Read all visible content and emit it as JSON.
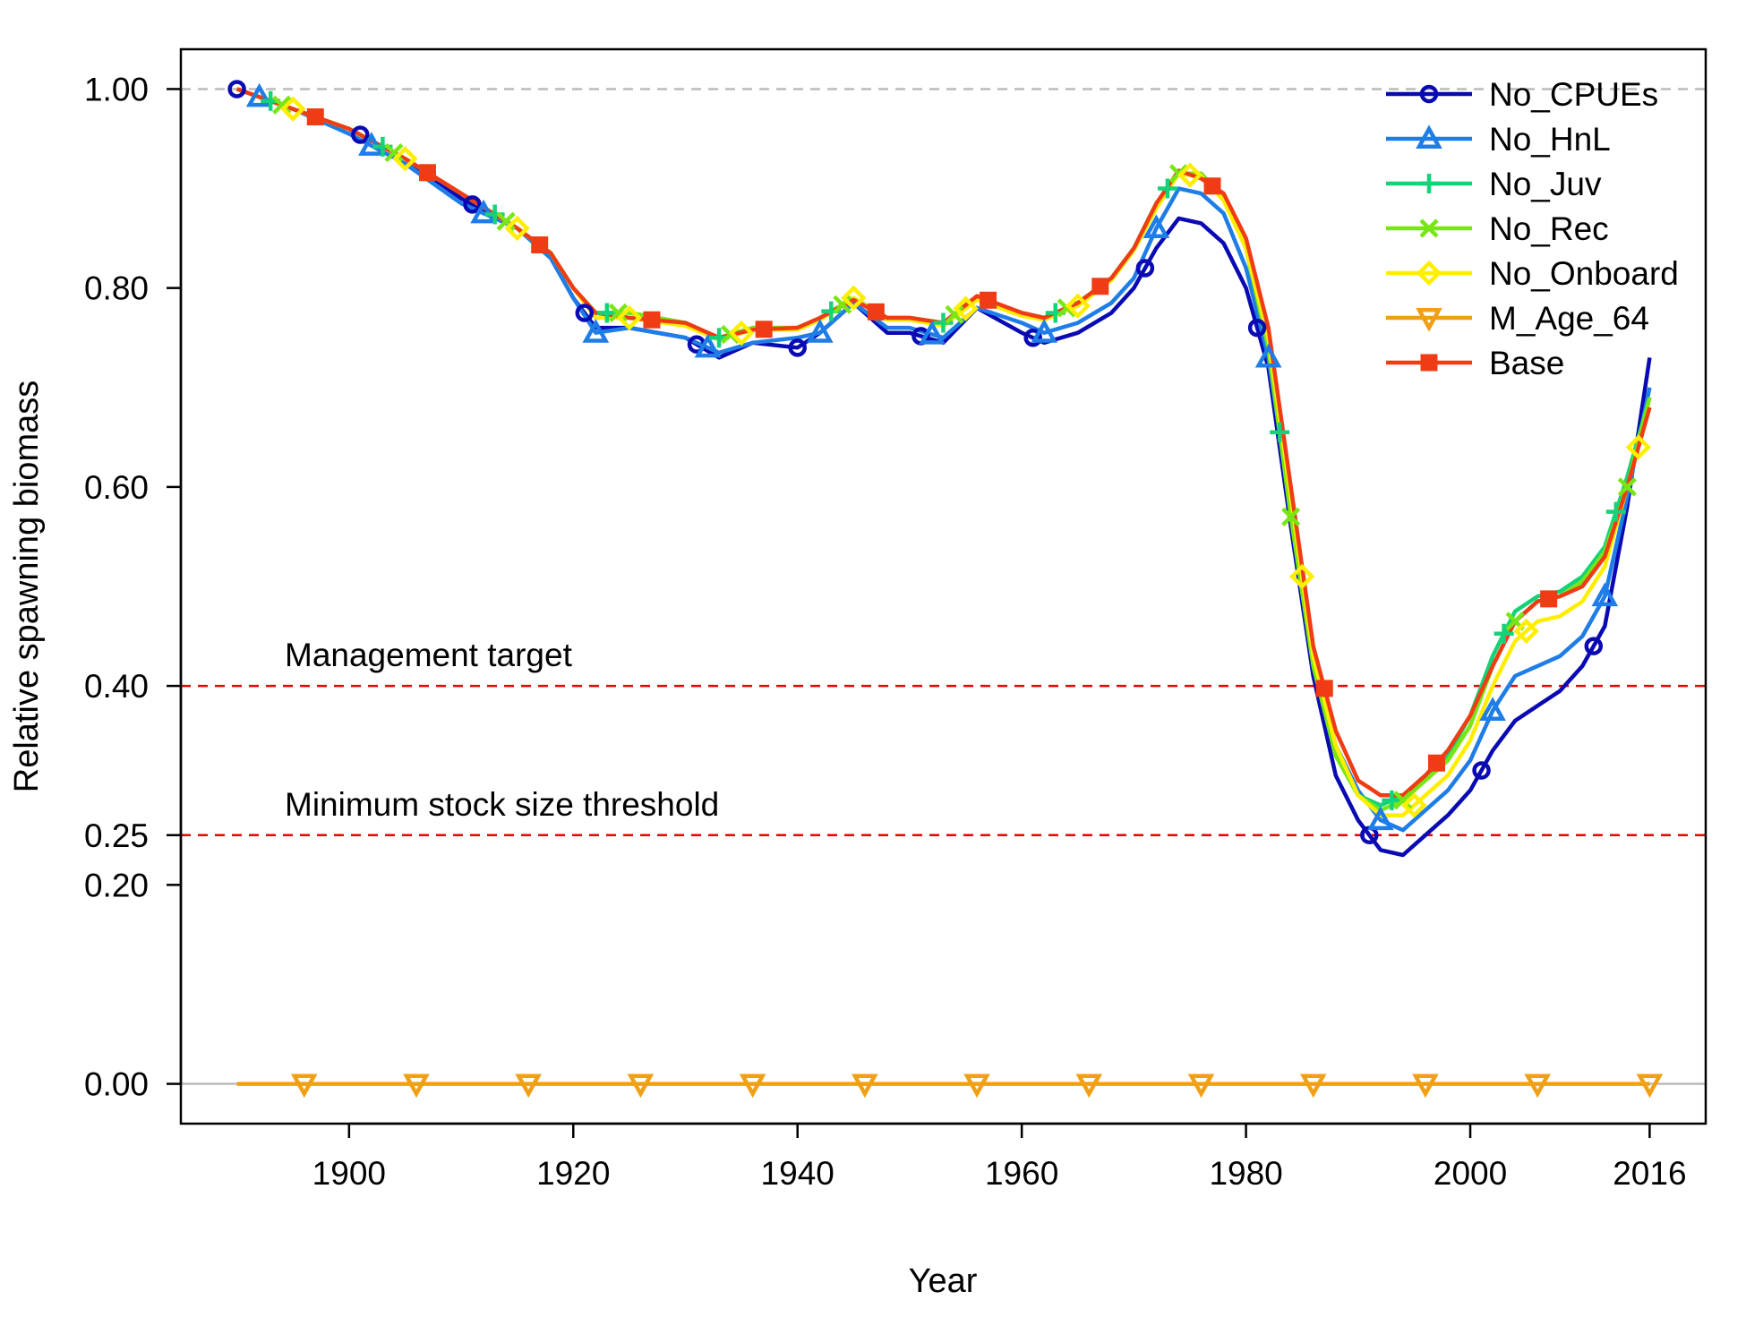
{
  "chart_data": {
    "type": "line",
    "title": "",
    "xlabel": "Year",
    "ylabel": "Relative spawning biomass",
    "xlim": [
      1885,
      2021
    ],
    "ylim": [
      -0.04,
      1.04
    ],
    "x_ticks": [
      1900,
      1920,
      1940,
      1960,
      1980,
      2000,
      2016
    ],
    "y_ticks": [
      0.0,
      0.2,
      0.25,
      0.4,
      0.6,
      0.8,
      1.0
    ],
    "y_tick_labels": [
      "0.00",
      "0.20",
      "0.25",
      "0.40",
      "0.60",
      "0.80",
      "1.00"
    ],
    "reference_lines": [
      {
        "name": "unfished",
        "y": 1.0,
        "color": "#bbbbbb",
        "label": ""
      },
      {
        "name": "target",
        "y": 0.4,
        "color": "#ee0000",
        "label": "Management target"
      },
      {
        "name": "threshold",
        "y": 0.25,
        "color": "#ee0000",
        "label": "Minimum stock size threshold"
      },
      {
        "name": "zero",
        "y": 0.0,
        "color": "#bbbbbb",
        "label": ""
      }
    ],
    "legend_position": "top-right",
    "series": [
      {
        "name": "No_CPUEs",
        "color": "#0a0ab4",
        "marker": "circle",
        "x": [
          1890,
          1895,
          1900,
          1905,
          1910,
          1915,
          1918,
          1920,
          1922,
          1925,
          1930,
          1933,
          1936,
          1940,
          1942,
          1945,
          1948,
          1950,
          1953,
          1956,
          1960,
          1962,
          1965,
          1968,
          1970,
          1972,
          1974,
          1976,
          1978,
          1980,
          1982,
          1984,
          1986,
          1988,
          1990,
          1992,
          1994,
          1996,
          1998,
          2000,
          2002,
          2004,
          2006,
          2008,
          2010,
          2012,
          2014,
          2016
        ],
        "y": [
          1.0,
          0.98,
          0.96,
          0.93,
          0.89,
          0.86,
          0.83,
          0.79,
          0.76,
          0.76,
          0.75,
          0.73,
          0.745,
          0.74,
          0.755,
          0.785,
          0.755,
          0.755,
          0.745,
          0.78,
          0.755,
          0.745,
          0.755,
          0.775,
          0.8,
          0.84,
          0.87,
          0.865,
          0.845,
          0.8,
          0.72,
          0.56,
          0.41,
          0.31,
          0.265,
          0.235,
          0.23,
          0.25,
          0.27,
          0.295,
          0.335,
          0.365,
          0.38,
          0.395,
          0.42,
          0.46,
          0.58,
          0.73
        ],
        "marker_years": [
          1890,
          1901,
          1911,
          1921,
          1931,
          1940,
          1951,
          1961,
          1971,
          1981,
          1991,
          2001,
          2011
        ]
      },
      {
        "name": "No_HnL",
        "color": "#1e7de6",
        "marker": "triangle-up",
        "x": [
          1890,
          1895,
          1900,
          1905,
          1910,
          1915,
          1918,
          1920,
          1922,
          1925,
          1930,
          1933,
          1936,
          1940,
          1942,
          1945,
          1948,
          1950,
          1953,
          1956,
          1960,
          1962,
          1965,
          1968,
          1970,
          1972,
          1974,
          1976,
          1978,
          1980,
          1982,
          1984,
          1986,
          1988,
          1990,
          1992,
          1994,
          1996,
          1998,
          2000,
          2002,
          2004,
          2006,
          2008,
          2010,
          2012,
          2014,
          2016
        ],
        "y": [
          1.0,
          0.98,
          0.955,
          0.925,
          0.885,
          0.86,
          0.83,
          0.79,
          0.755,
          0.76,
          0.75,
          0.735,
          0.745,
          0.75,
          0.755,
          0.785,
          0.76,
          0.76,
          0.75,
          0.78,
          0.765,
          0.755,
          0.765,
          0.785,
          0.81,
          0.86,
          0.9,
          0.895,
          0.875,
          0.82,
          0.73,
          0.58,
          0.43,
          0.34,
          0.295,
          0.265,
          0.255,
          0.275,
          0.295,
          0.325,
          0.375,
          0.41,
          0.42,
          0.43,
          0.45,
          0.49,
          0.59,
          0.7
        ],
        "marker_years": [
          1892,
          1902,
          1912,
          1922,
          1932,
          1942,
          1952,
          1962,
          1972,
          1982,
          1992,
          2002,
          2012
        ]
      },
      {
        "name": "No_Juv",
        "color": "#14d278",
        "marker": "plus",
        "x": [
          1890,
          1895,
          1900,
          1905,
          1910,
          1915,
          1918,
          1920,
          1922,
          1925,
          1930,
          1933,
          1936,
          1940,
          1942,
          1945,
          1948,
          1950,
          1953,
          1956,
          1960,
          1962,
          1965,
          1968,
          1970,
          1972,
          1974,
          1976,
          1978,
          1980,
          1982,
          1984,
          1986,
          1988,
          1990,
          1992,
          1994,
          1996,
          1998,
          2000,
          2002,
          2004,
          2006,
          2008,
          2010,
          2012,
          2014,
          2016
        ],
        "y": [
          1.0,
          0.98,
          0.96,
          0.93,
          0.895,
          0.86,
          0.835,
          0.8,
          0.775,
          0.775,
          0.765,
          0.75,
          0.76,
          0.76,
          0.77,
          0.79,
          0.77,
          0.77,
          0.765,
          0.79,
          0.775,
          0.77,
          0.785,
          0.81,
          0.84,
          0.885,
          0.915,
          0.915,
          0.89,
          0.84,
          0.74,
          0.57,
          0.42,
          0.33,
          0.29,
          0.28,
          0.29,
          0.31,
          0.33,
          0.37,
          0.43,
          0.475,
          0.49,
          0.495,
          0.51,
          0.54,
          0.61,
          0.69
        ],
        "marker_years": [
          1893,
          1903,
          1913,
          1923,
          1933,
          1943,
          1953,
          1963,
          1973,
          1983,
          1993,
          2003,
          2013
        ]
      },
      {
        "name": "No_Rec",
        "color": "#78e614",
        "marker": "cross",
        "x": [
          1890,
          1895,
          1900,
          1905,
          1910,
          1915,
          1918,
          1920,
          1922,
          1925,
          1930,
          1933,
          1936,
          1940,
          1942,
          1945,
          1948,
          1950,
          1953,
          1956,
          1960,
          1962,
          1965,
          1968,
          1970,
          1972,
          1974,
          1976,
          1978,
          1980,
          1982,
          1984,
          1986,
          1988,
          1990,
          1992,
          1994,
          1996,
          1998,
          2000,
          2002,
          2004,
          2006,
          2008,
          2010,
          2012,
          2014,
          2016
        ],
        "y": [
          1.0,
          0.98,
          0.96,
          0.93,
          0.895,
          0.86,
          0.835,
          0.8,
          0.775,
          0.775,
          0.765,
          0.75,
          0.76,
          0.76,
          0.77,
          0.79,
          0.77,
          0.77,
          0.765,
          0.79,
          0.775,
          0.77,
          0.785,
          0.81,
          0.84,
          0.885,
          0.915,
          0.915,
          0.89,
          0.84,
          0.74,
          0.57,
          0.42,
          0.33,
          0.29,
          0.275,
          0.285,
          0.305,
          0.325,
          0.36,
          0.42,
          0.465,
          0.485,
          0.49,
          0.505,
          0.535,
          0.6,
          0.69
        ],
        "marker_years": [
          1894,
          1904,
          1914,
          1924,
          1934,
          1944,
          1954,
          1964,
          1974,
          1984,
          1994,
          2004,
          2014
        ]
      },
      {
        "name": "No_Onboard",
        "color": "#ffee00",
        "marker": "diamond",
        "x": [
          1890,
          1895,
          1900,
          1905,
          1910,
          1915,
          1918,
          1920,
          1922,
          1925,
          1930,
          1933,
          1936,
          1940,
          1942,
          1945,
          1948,
          1950,
          1953,
          1956,
          1960,
          1962,
          1965,
          1968,
          1970,
          1972,
          1974,
          1976,
          1978,
          1980,
          1982,
          1984,
          1986,
          1988,
          1990,
          1992,
          1994,
          1996,
          1998,
          2000,
          2002,
          2004,
          2006,
          2008,
          2010,
          2012,
          2014,
          2016
        ],
        "y": [
          1.0,
          0.98,
          0.96,
          0.93,
          0.895,
          0.86,
          0.835,
          0.8,
          0.77,
          0.77,
          0.762,
          0.748,
          0.758,
          0.758,
          0.768,
          0.79,
          0.768,
          0.768,
          0.762,
          0.788,
          0.772,
          0.768,
          0.782,
          0.808,
          0.838,
          0.88,
          0.915,
          0.912,
          0.888,
          0.84,
          0.75,
          0.59,
          0.43,
          0.34,
          0.29,
          0.27,
          0.27,
          0.29,
          0.31,
          0.345,
          0.4,
          0.445,
          0.465,
          0.47,
          0.485,
          0.52,
          0.6,
          0.68
        ],
        "marker_years": [
          1895,
          1905,
          1915,
          1925,
          1935,
          1945,
          1955,
          1965,
          1975,
          1985,
          1995,
          2005,
          2015
        ]
      },
      {
        "name": "M_Age_64",
        "color": "#f0a014",
        "marker": "triangle-down",
        "x": [
          1890,
          2016
        ],
        "y": [
          0.0,
          0.0
        ],
        "marker_years": [
          1896,
          1906,
          1916,
          1926,
          1936,
          1946,
          1956,
          1966,
          1976,
          1986,
          1996,
          2006,
          2016
        ]
      },
      {
        "name": "Base",
        "color": "#f03c14",
        "marker": "square",
        "x": [
          1890,
          1895,
          1900,
          1905,
          1910,
          1915,
          1918,
          1920,
          1922,
          1925,
          1930,
          1933,
          1936,
          1940,
          1942,
          1945,
          1948,
          1950,
          1953,
          1956,
          1960,
          1962,
          1965,
          1968,
          1970,
          1972,
          1974,
          1976,
          1978,
          1980,
          1982,
          1984,
          1986,
          1988,
          1990,
          1992,
          1994,
          1996,
          1998,
          2000,
          2002,
          2004,
          2006,
          2008,
          2010,
          2012,
          2014,
          2016
        ],
        "y": [
          1.0,
          0.98,
          0.96,
          0.93,
          0.895,
          0.86,
          0.835,
          0.8,
          0.775,
          0.77,
          0.765,
          0.75,
          0.758,
          0.76,
          0.77,
          0.788,
          0.77,
          0.77,
          0.765,
          0.792,
          0.775,
          0.77,
          0.785,
          0.81,
          0.84,
          0.885,
          0.918,
          0.91,
          0.895,
          0.85,
          0.76,
          0.6,
          0.44,
          0.355,
          0.305,
          0.29,
          0.29,
          0.31,
          0.335,
          0.37,
          0.42,
          0.465,
          0.485,
          0.49,
          0.5,
          0.53,
          0.6,
          0.68
        ],
        "marker_years": [
          1897,
          1907,
          1917,
          1927,
          1937,
          1947,
          1957,
          1967,
          1977,
          1987,
          1997,
          2007
        ]
      }
    ]
  }
}
